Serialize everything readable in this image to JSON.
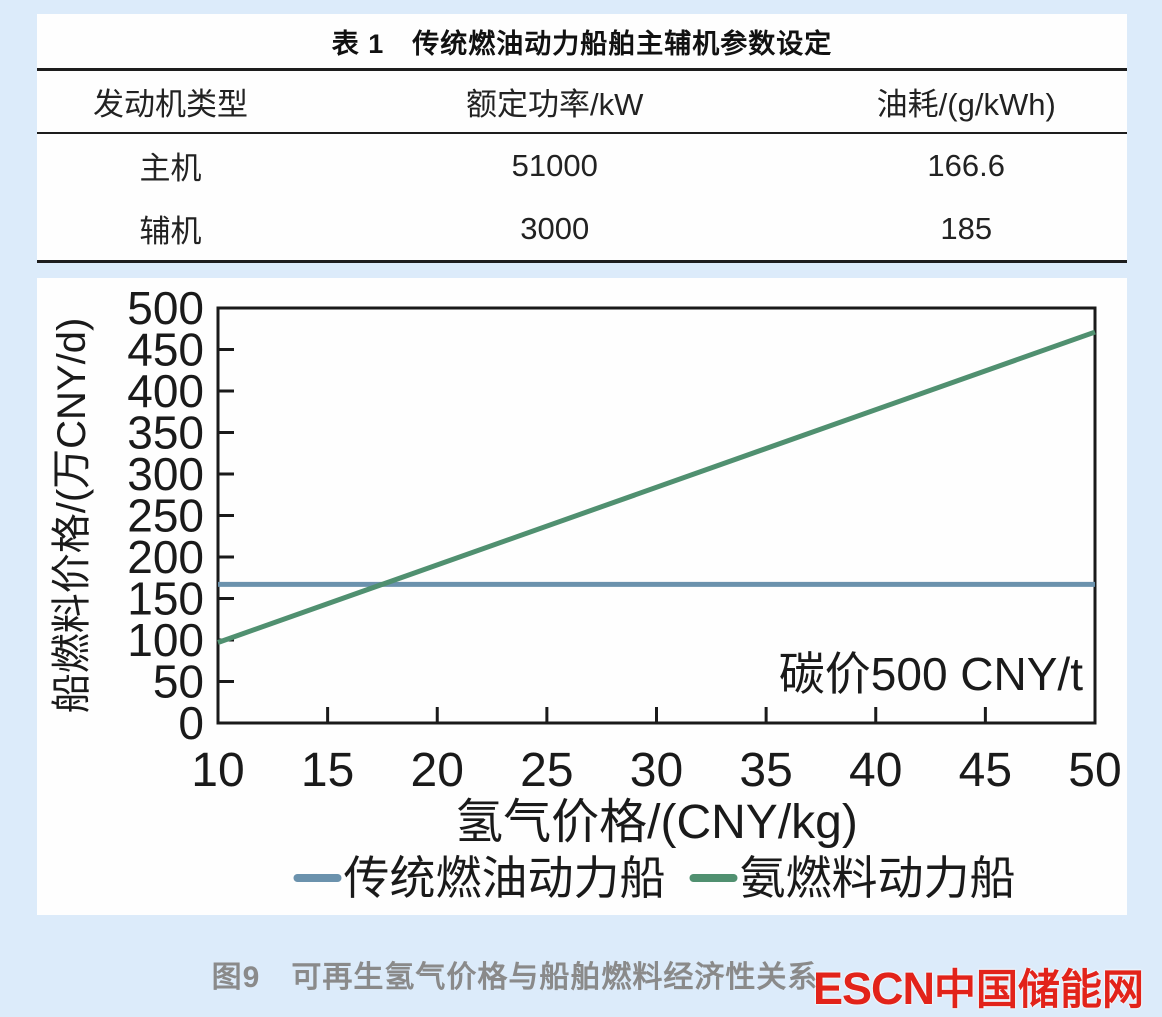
{
  "page": {
    "background": "#dcebfa"
  },
  "table": {
    "title": "表 1　传统燃油动力船舶主辅机参数设定",
    "headers": [
      "发动机类型",
      "额定功率/kW",
      "油耗/(g/kWh)"
    ],
    "rows": [
      [
        "主机",
        "51000",
        "166.6"
      ],
      [
        "辅机",
        "3000",
        "185"
      ]
    ]
  },
  "chart_data": {
    "type": "line",
    "title": "",
    "xlabel": "氢气价格/(CNY/kg)",
    "ylabel": "船燃料价格/(万CNY/d)",
    "xlim": [
      10,
      50
    ],
    "ylim": [
      0,
      500
    ],
    "xticks": [
      10,
      15,
      20,
      25,
      30,
      35,
      40,
      45,
      50
    ],
    "yticks": [
      0,
      50,
      100,
      150,
      200,
      250,
      300,
      350,
      400,
      450,
      500
    ],
    "grid": false,
    "legend_position": "bottom",
    "annotation": "碳价500 CNY/t",
    "axis_color": "#1a1a1a",
    "series": [
      {
        "name": "传统燃油动力船",
        "color": "#6b92ad",
        "x": [
          10,
          50
        ],
        "y": [
          167,
          167
        ]
      },
      {
        "name": "氨燃料动力船",
        "color": "#509070",
        "x": [
          10,
          50
        ],
        "y": [
          97,
          471
        ]
      }
    ]
  },
  "caption": "图9　可再生氢气价格与船舶燃料经济性关系",
  "logo": {
    "latin": "ESCN",
    "cn": "中国储能网",
    "color": "#e2231a"
  }
}
